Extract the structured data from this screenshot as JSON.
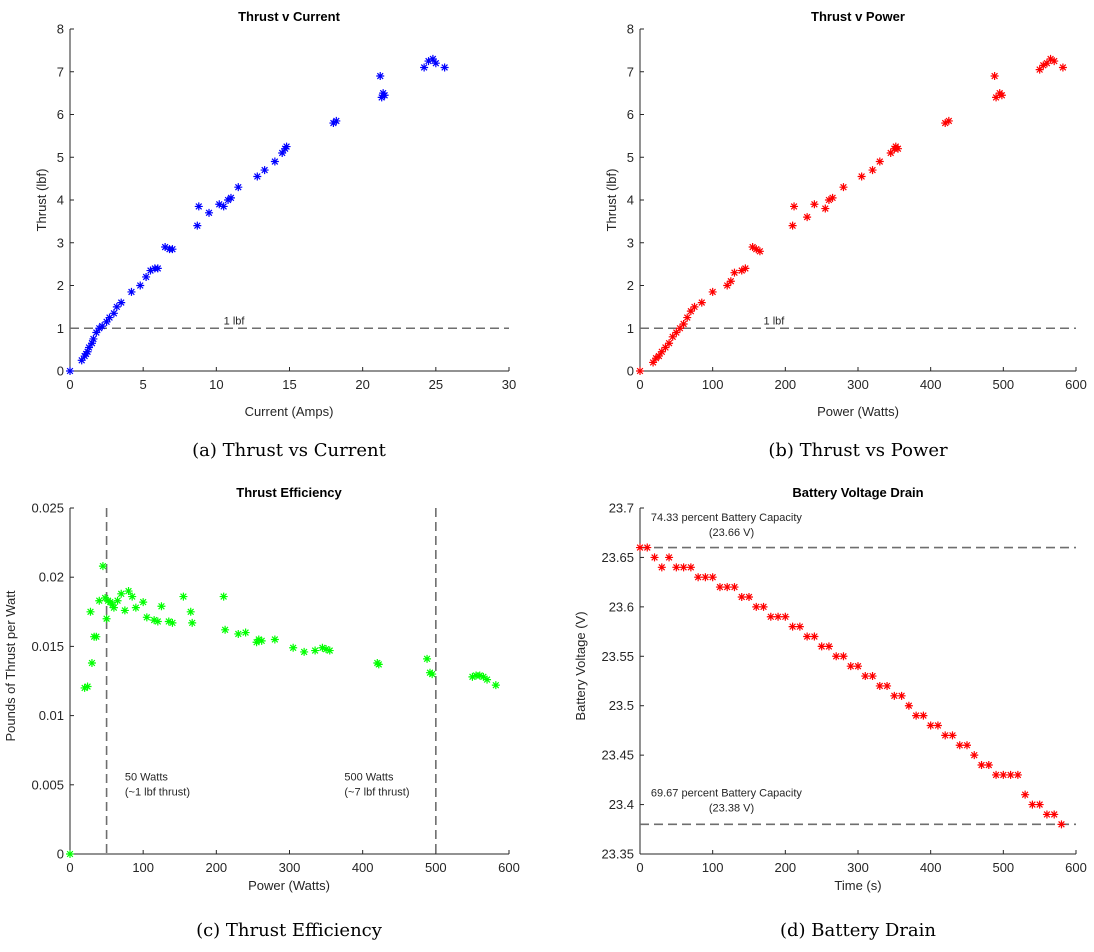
{
  "chart_data": [
    {
      "type": "scatter",
      "title": "Thrust v Current",
      "xlabel": "Current (Amps)",
      "ylabel": "Thrust (lbf)",
      "caption": "(a) Thrust vs Current",
      "xlim": [
        0,
        30
      ],
      "ylim": [
        0,
        8
      ],
      "xticks": [
        0,
        5,
        10,
        15,
        20,
        25,
        30
      ],
      "yticks": [
        0,
        1,
        2,
        3,
        4,
        5,
        6,
        7,
        8
      ],
      "color": "#0000ff",
      "marker": "asterisk",
      "hlines": [
        {
          "y": 1,
          "label": "1 lbf",
          "label_x": 10.5
        }
      ],
      "vlines": [],
      "annotations": [],
      "series": [
        {
          "x": [
            0,
            0.8,
            1.0,
            1.1,
            1.2,
            1.3,
            1.5,
            1.6,
            1.8,
            2.0,
            2.2,
            2.5,
            2.7,
            3.0,
            3.2,
            3.5,
            4.2,
            4.8,
            5.2,
            5.5,
            5.8,
            6.0,
            6.5,
            6.8,
            7.0,
            8.7,
            8.8,
            9.5,
            10.2,
            10.5,
            10.8,
            11.0,
            11.5,
            12.8,
            13.3,
            14.0,
            14.5,
            14.7,
            14.8,
            18.0,
            18.2,
            21.2,
            21.3,
            21.4,
            21.5,
            24.2,
            24.5,
            24.8,
            25.0,
            25.6
          ],
          "y": [
            0,
            0.25,
            0.35,
            0.4,
            0.45,
            0.55,
            0.65,
            0.75,
            0.9,
            1.0,
            1.05,
            1.15,
            1.25,
            1.35,
            1.5,
            1.6,
            1.85,
            2.0,
            2.2,
            2.35,
            2.4,
            2.4,
            2.9,
            2.85,
            2.85,
            3.4,
            3.85,
            3.7,
            3.9,
            3.85,
            4.0,
            4.05,
            4.3,
            4.55,
            4.7,
            4.9,
            5.1,
            5.2,
            5.25,
            5.8,
            5.85,
            6.9,
            6.4,
            6.5,
            6.45,
            7.1,
            7.25,
            7.3,
            7.2,
            7.1
          ]
        }
      ]
    },
    {
      "type": "scatter",
      "title": "Thrust v Power",
      "xlabel": "Power (Watts)",
      "ylabel": "Thrust (lbf)",
      "caption": "(b) Thrust vs Power",
      "xlim": [
        0,
        600
      ],
      "ylim": [
        0,
        8
      ],
      "xticks": [
        0,
        100,
        200,
        300,
        400,
        500,
        600
      ],
      "yticks": [
        0,
        1,
        2,
        3,
        4,
        5,
        6,
        7,
        8
      ],
      "color": "#ff0000",
      "marker": "asterisk",
      "hlines": [
        {
          "y": 1,
          "label": "1 lbf",
          "label_x": 170
        }
      ],
      "vlines": [],
      "annotations": [],
      "series": [
        {
          "x": [
            0,
            18,
            22,
            26,
            30,
            35,
            40,
            45,
            50,
            55,
            60,
            65,
            70,
            75,
            85,
            100,
            120,
            125,
            130,
            140,
            145,
            155,
            160,
            165,
            210,
            212,
            230,
            240,
            255,
            260,
            265,
            280,
            305,
            320,
            330,
            345,
            350,
            352,
            355,
            420,
            425,
            488,
            490,
            495,
            498,
            550,
            555,
            560,
            565,
            570,
            582
          ],
          "y": [
            0,
            0.2,
            0.3,
            0.35,
            0.45,
            0.55,
            0.65,
            0.8,
            0.9,
            1.0,
            1.1,
            1.25,
            1.4,
            1.5,
            1.6,
            1.85,
            2.0,
            2.1,
            2.3,
            2.35,
            2.4,
            2.9,
            2.85,
            2.8,
            3.4,
            3.85,
            3.6,
            3.9,
            3.8,
            4.0,
            4.05,
            4.3,
            4.55,
            4.7,
            4.9,
            5.1,
            5.2,
            5.25,
            5.2,
            5.8,
            5.85,
            6.9,
            6.4,
            6.5,
            6.45,
            7.05,
            7.15,
            7.2,
            7.3,
            7.25,
            7.1
          ]
        }
      ]
    },
    {
      "type": "scatter",
      "title": "Thrust Efficiency",
      "xlabel": "Power (Watts)",
      "ylabel": "Pounds of Thrust per Watt",
      "caption": "(c) Thrust Efficiency",
      "xlim": [
        0,
        600
      ],
      "ylim": [
        0,
        0.025
      ],
      "xticks": [
        0,
        100,
        200,
        300,
        400,
        500,
        600
      ],
      "yticks": [
        0,
        0.005,
        0.01,
        0.015,
        0.02,
        0.025
      ],
      "color": "#00ff00",
      "marker": "asterisk",
      "hlines": [],
      "vlines": [
        {
          "x": 50
        },
        {
          "x": 500
        }
      ],
      "annotations": [
        {
          "x": 75,
          "y": 0.0053,
          "lines": [
            "50 Watts",
            "(~1 lbf thrust)"
          ]
        },
        {
          "x": 375,
          "y": 0.0053,
          "lines": [
            "500 Watts",
            "(~7 lbf thrust)"
          ]
        }
      ],
      "series": [
        {
          "x": [
            0,
            20,
            24,
            28,
            30,
            33,
            36,
            40,
            45,
            48,
            50,
            52,
            55,
            58,
            60,
            65,
            70,
            75,
            80,
            85,
            90,
            100,
            105,
            115,
            120,
            125,
            135,
            140,
            155,
            165,
            167,
            210,
            212,
            230,
            240,
            255,
            258,
            262,
            280,
            305,
            320,
            335,
            345,
            350,
            355,
            420,
            422,
            488,
            492,
            495,
            550,
            555,
            560,
            565,
            570,
            582
          ],
          "y": [
            0,
            0.012,
            0.0121,
            0.0175,
            0.0138,
            0.0157,
            0.0157,
            0.0183,
            0.0208,
            0.0185,
            0.017,
            0.0183,
            0.0182,
            0.018,
            0.0178,
            0.0183,
            0.0188,
            0.0176,
            0.019,
            0.0186,
            0.0178,
            0.0182,
            0.0171,
            0.0169,
            0.0168,
            0.0179,
            0.0168,
            0.0167,
            0.0186,
            0.0175,
            0.0167,
            0.0186,
            0.0162,
            0.0159,
            0.016,
            0.0153,
            0.0155,
            0.0154,
            0.0155,
            0.0149,
            0.0146,
            0.0147,
            0.0149,
            0.0148,
            0.0147,
            0.0138,
            0.0137,
            0.0141,
            0.0131,
            0.013,
            0.0128,
            0.0129,
            0.0129,
            0.0128,
            0.0126,
            0.0122
          ]
        }
      ]
    },
    {
      "type": "scatter",
      "title": "Battery Voltage Drain",
      "xlabel": "Time (s)",
      "ylabel": "Battery Voltage (V)",
      "caption": "(d) Battery Drain",
      "xlim": [
        0,
        600
      ],
      "ylim": [
        23.35,
        23.7
      ],
      "xticks": [
        0,
        100,
        200,
        300,
        400,
        500,
        600
      ],
      "yticks": [
        23.35,
        23.4,
        23.45,
        23.5,
        23.55,
        23.6,
        23.65,
        23.7
      ],
      "color": "#ff0000",
      "marker": "asterisk",
      "hlines": [
        {
          "y": 23.66
        },
        {
          "y": 23.38
        }
      ],
      "vlines": [],
      "annotations": [
        {
          "x": 15,
          "y": 23.687,
          "lines": [
            "74.33 percent Battery Capacity",
            "(23.66 V)"
          ]
        },
        {
          "x": 15,
          "y": 23.408,
          "lines": [
            "69.67 percent Battery Capacity",
            "(23.38 V)"
          ]
        }
      ],
      "series": [
        {
          "x": [
            0,
            10,
            20,
            30,
            40,
            50,
            60,
            70,
            80,
            90,
            100,
            110,
            120,
            130,
            140,
            150,
            160,
            170,
            180,
            190,
            200,
            210,
            220,
            230,
            240,
            250,
            260,
            270,
            280,
            290,
            300,
            310,
            320,
            330,
            340,
            350,
            360,
            370,
            380,
            390,
            400,
            410,
            420,
            430,
            440,
            450,
            460,
            470,
            480,
            490,
            500,
            510,
            520,
            530,
            540,
            550,
            560,
            570,
            580
          ],
          "y": [
            23.66,
            23.66,
            23.65,
            23.64,
            23.65,
            23.64,
            23.64,
            23.64,
            23.63,
            23.63,
            23.63,
            23.62,
            23.62,
            23.62,
            23.61,
            23.61,
            23.6,
            23.6,
            23.59,
            23.59,
            23.59,
            23.58,
            23.58,
            23.57,
            23.57,
            23.56,
            23.56,
            23.55,
            23.55,
            23.54,
            23.54,
            23.53,
            23.53,
            23.52,
            23.52,
            23.51,
            23.51,
            23.5,
            23.49,
            23.49,
            23.48,
            23.48,
            23.47,
            23.47,
            23.46,
            23.46,
            23.45,
            23.44,
            23.44,
            23.43,
            23.43,
            23.43,
            23.43,
            23.41,
            23.4,
            23.4,
            23.39,
            23.39,
            23.38
          ]
        }
      ]
    }
  ]
}
